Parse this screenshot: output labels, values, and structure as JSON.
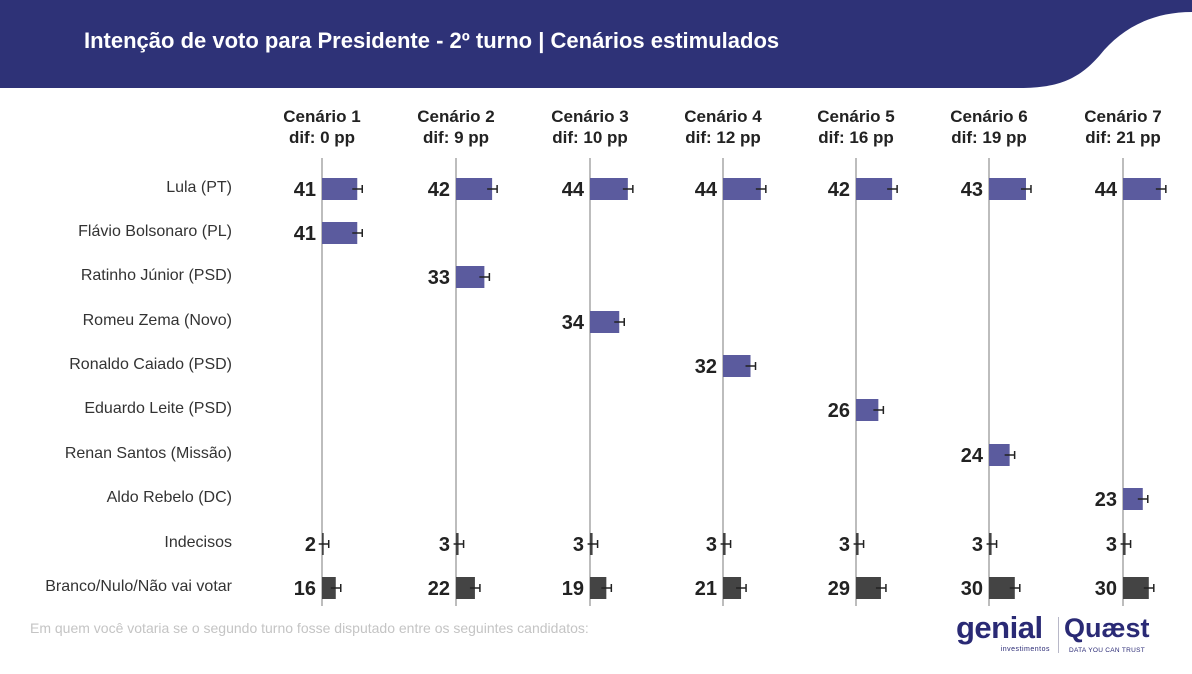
{
  "header": {
    "title": "Intenção de voto para Presidente - 2º turno | Cenários estimulados"
  },
  "chart_data": {
    "type": "bar",
    "title": "Intenção de voto para Presidente - 2º turno | Cenários estimulados",
    "xlim": [
      0,
      50
    ],
    "scenarios": [
      {
        "name": "Cenário 1",
        "dif": "dif: 0 pp"
      },
      {
        "name": "Cenário 2",
        "dif": "dif: 9 pp"
      },
      {
        "name": "Cenário 3",
        "dif": "dif: 10 pp"
      },
      {
        "name": "Cenário 4",
        "dif": "dif: 12 pp"
      },
      {
        "name": "Cenário 5",
        "dif": "dif: 16 pp"
      },
      {
        "name": "Cenário 6",
        "dif": "dif: 19 pp"
      },
      {
        "name": "Cenário 7",
        "dif": "dif: 21 pp"
      }
    ],
    "categories": [
      "Lula (PT)",
      "Flávio Bolsonaro (PL)",
      "Ratinho Júnior (PSD)",
      "Romeu Zema (Novo)",
      "Ronaldo Caiado (PSD)",
      "Eduardo Leite (PSD)",
      "Renan Santos (Missão)",
      "Aldo Rebelo (DC)",
      "Indecisos",
      "Branco/Nulo/Não vai votar"
    ],
    "values": [
      [
        41,
        42,
        44,
        44,
        42,
        43,
        44
      ],
      [
        41,
        null,
        null,
        null,
        null,
        null,
        null
      ],
      [
        null,
        33,
        null,
        null,
        null,
        null,
        null
      ],
      [
        null,
        null,
        34,
        null,
        null,
        null,
        null
      ],
      [
        null,
        null,
        null,
        32,
        null,
        null,
        null
      ],
      [
        null,
        null,
        null,
        null,
        26,
        null,
        null
      ],
      [
        null,
        null,
        null,
        null,
        null,
        24,
        null
      ],
      [
        null,
        null,
        null,
        null,
        null,
        null,
        23
      ],
      [
        2,
        3,
        3,
        3,
        3,
        3,
        3
      ],
      [
        16,
        22,
        19,
        21,
        29,
        30,
        30
      ]
    ],
    "colors": {
      "candidate": "#5b5b9e",
      "other": "#444444",
      "header": "#2e3277",
      "gridline": "#bdbdbd"
    }
  },
  "footer": {
    "note": "Em quem você votaria se o segundo turno fosse disputado entre os seguintes candidatos:",
    "logo_genial": "genial",
    "logo_genial_sub": "investimentos",
    "logo_quaest": "Quæst",
    "logo_quaest_sub": "DATA YOU CAN TRUST"
  }
}
